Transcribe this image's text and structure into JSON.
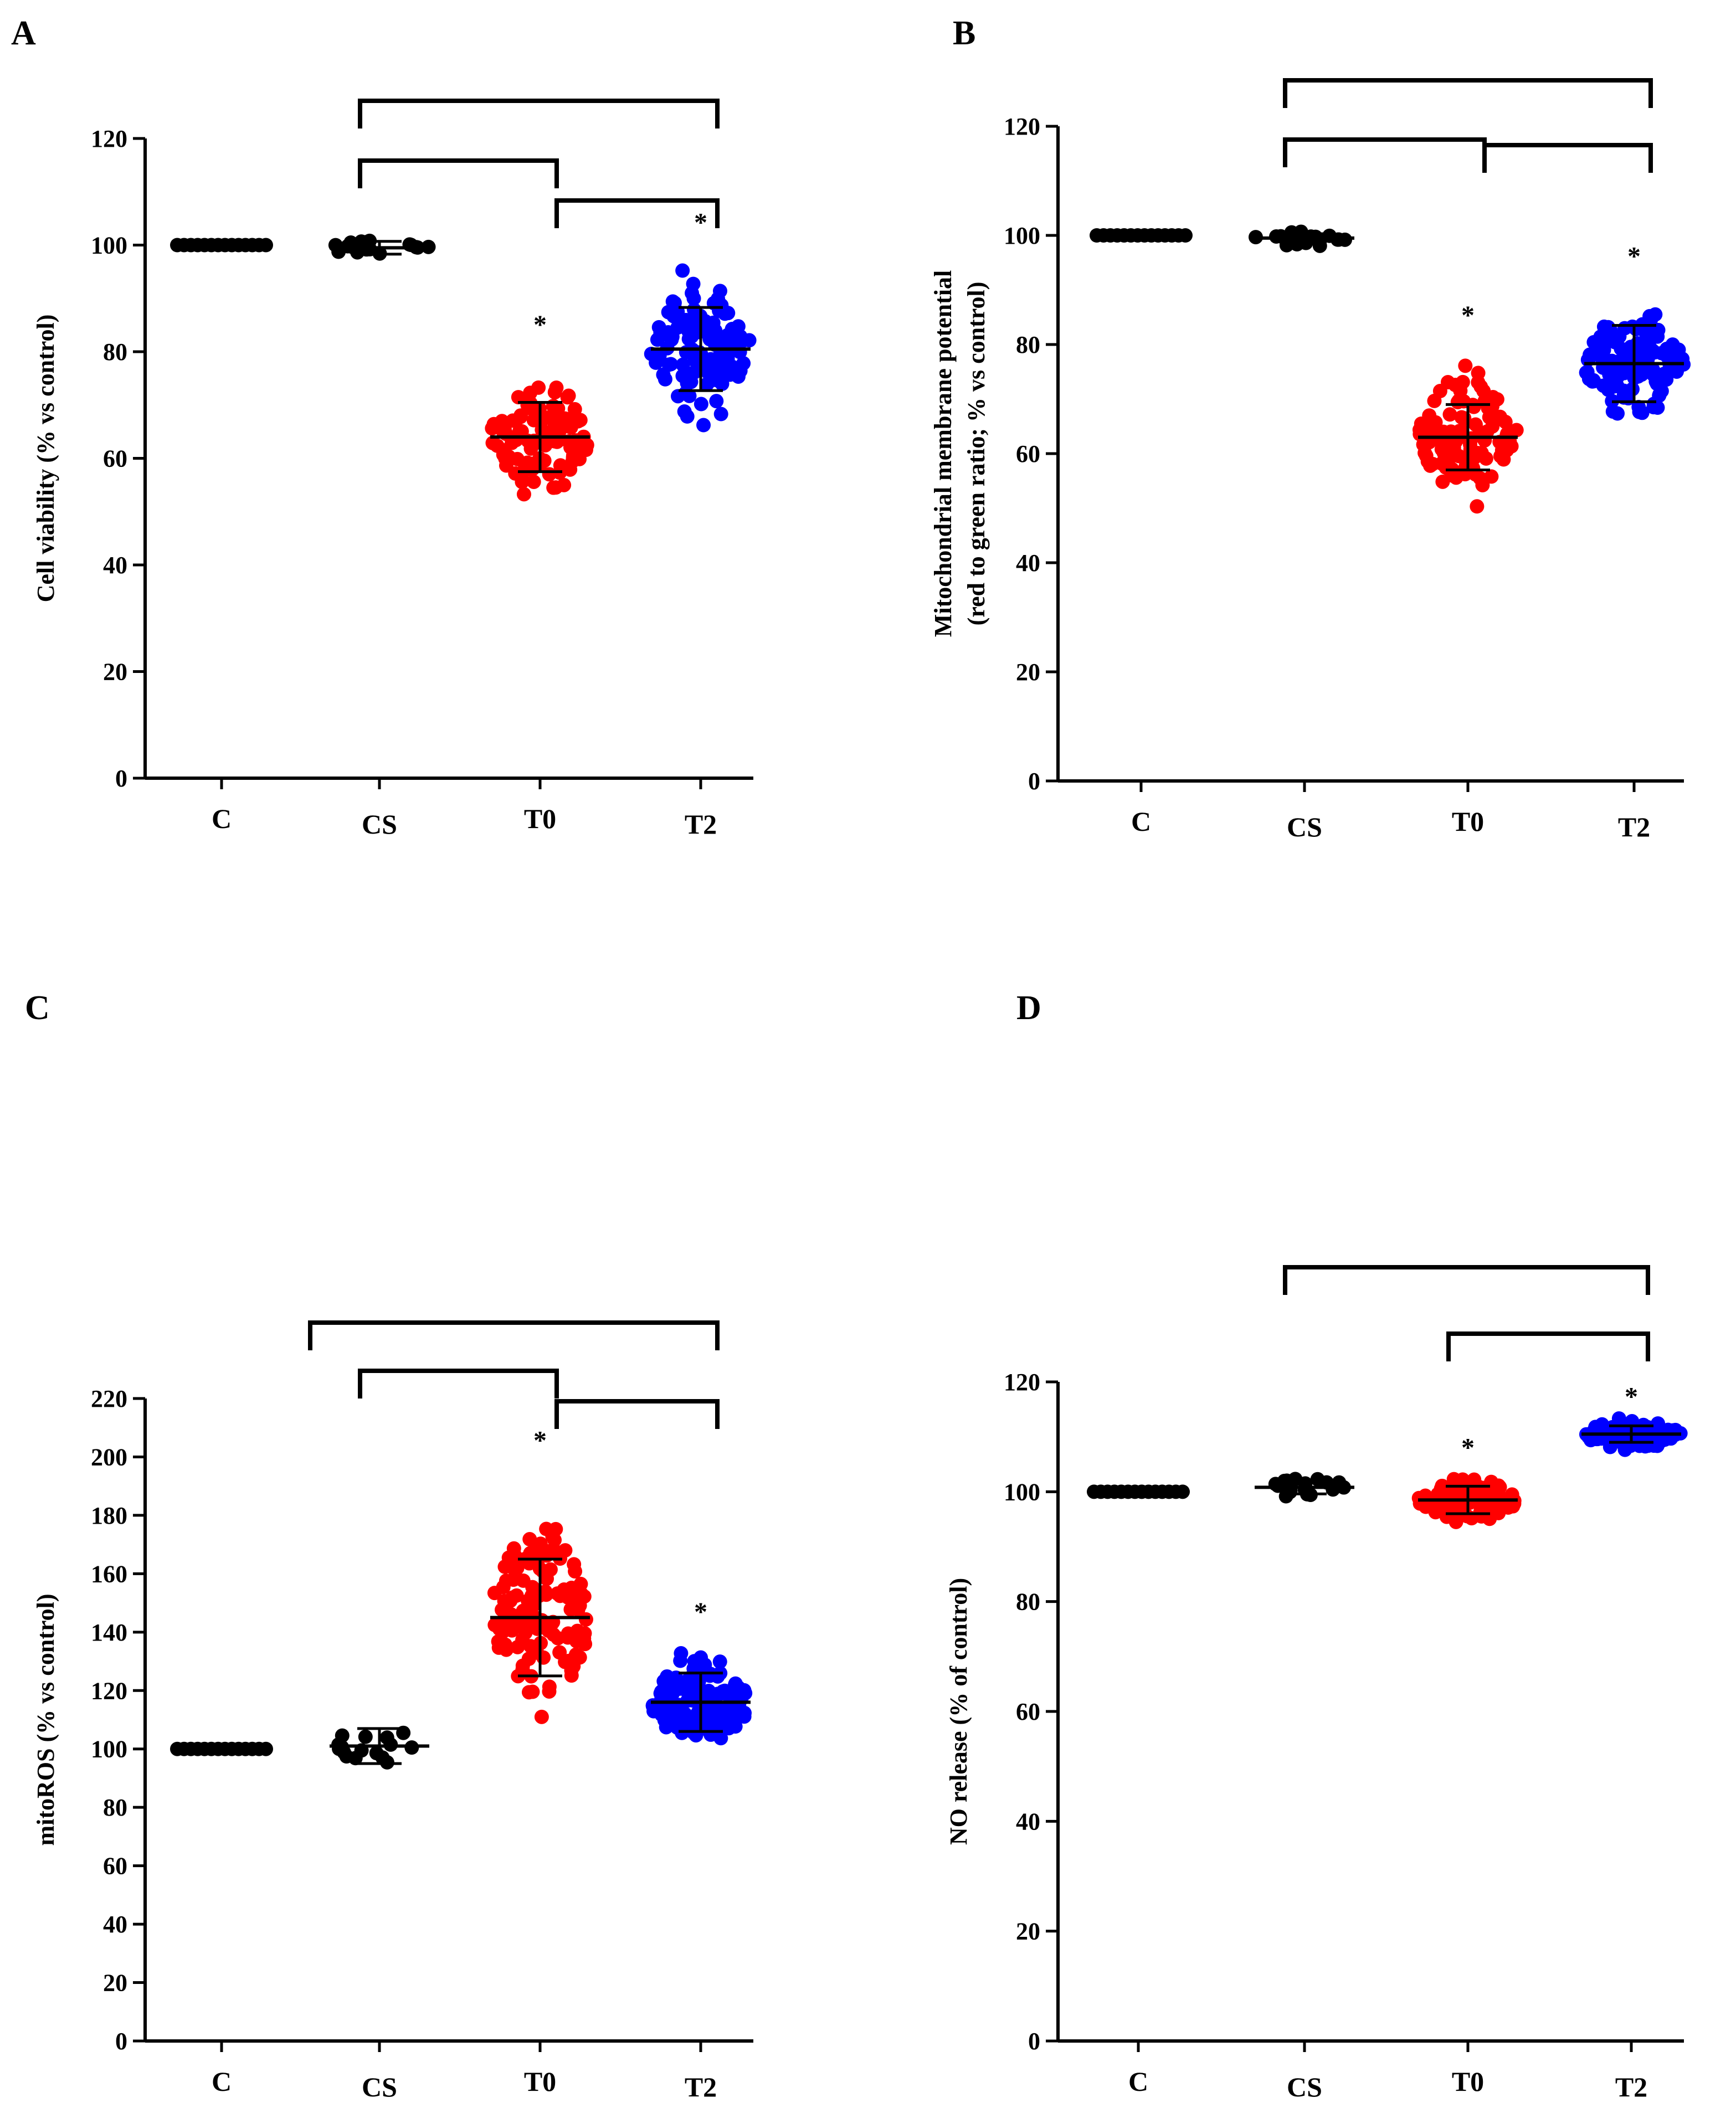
{
  "colors": {
    "C": "#000000",
    "CS": "#000000",
    "T0": "#ff0000",
    "T2": "#0000ff",
    "axis": "#000000"
  },
  "chart_data": [
    {
      "panel": "A",
      "type": "scatter",
      "ylabel": "Cell viability (% vs control)",
      "ylabel2": "",
      "ylim": [
        0,
        120
      ],
      "yticks": [
        0,
        20,
        40,
        60,
        80,
        100,
        120
      ],
      "categories": [
        "C",
        "CS",
        "T0",
        "T2"
      ],
      "groups": [
        {
          "name": "C",
          "mean": 100,
          "sd": 0,
          "spread": 0,
          "n": 14,
          "star": false
        },
        {
          "name": "CS",
          "mean": 99.5,
          "sd": 1.2,
          "spread": 2.5,
          "n": 18,
          "star": false
        },
        {
          "name": "T0",
          "mean": 64,
          "sd": 6.5,
          "spread": 14,
          "n": 110,
          "star": true
        },
        {
          "name": "T2",
          "mean": 80.5,
          "sd": 7.8,
          "spread": 16,
          "n": 120,
          "star": true
        }
      ],
      "brackets": [
        [
          "CS",
          "T2"
        ],
        [
          "CS",
          "T0"
        ],
        [
          "T0",
          "T2"
        ]
      ]
    },
    {
      "panel": "B",
      "type": "scatter",
      "ylabel": "Mitochondrial membrane potential",
      "ylabel2": "(red to green ratio; % vs control)",
      "ylim": [
        0,
        120
      ],
      "yticks": [
        0,
        20,
        40,
        60,
        80,
        100,
        120
      ],
      "categories": [
        "C",
        "CS",
        "T0",
        "T2"
      ],
      "groups": [
        {
          "name": "C",
          "mean": 100,
          "sd": 0,
          "spread": 0,
          "n": 14,
          "star": false
        },
        {
          "name": "CS",
          "mean": 99.5,
          "sd": 0.8,
          "spread": 2,
          "n": 18,
          "star": false
        },
        {
          "name": "T0",
          "mean": 63,
          "sd": 6,
          "spread": 15,
          "n": 110,
          "star": true
        },
        {
          "name": "T2",
          "mean": 76.5,
          "sd": 7,
          "spread": 13,
          "n": 120,
          "star": true
        }
      ],
      "brackets": [
        [
          "CS",
          "T2"
        ],
        [
          "CS",
          "T0"
        ],
        [
          "T0",
          "T2"
        ]
      ]
    },
    {
      "panel": "C",
      "type": "scatter",
      "ylabel": "mitoROS (% vs control)",
      "ylabel2": "",
      "ylim": [
        0,
        220
      ],
      "yticks": [
        0,
        20,
        40,
        60,
        80,
        100,
        120,
        140,
        160,
        180,
        200,
        220
      ],
      "categories": [
        "C",
        "CS",
        "T0",
        "T2"
      ],
      "groups": [
        {
          "name": "C",
          "mean": 100,
          "sd": 0,
          "spread": 0,
          "n": 14,
          "star": false
        },
        {
          "name": "CS",
          "mean": 101,
          "sd": 6,
          "spread": 11,
          "n": 16,
          "star": false
        },
        {
          "name": "T0",
          "mean": 145,
          "sd": 20,
          "spread": 42,
          "n": 130,
          "star": true
        },
        {
          "name": "T2",
          "mean": 116,
          "sd": 10,
          "spread": 20,
          "n": 130,
          "star": true
        }
      ],
      "brackets": [
        [
          "C",
          "T2"
        ],
        [
          "CS",
          "T0"
        ],
        [
          "T0",
          "T2"
        ]
      ]
    },
    {
      "panel": "D",
      "type": "scatter",
      "ylabel": "NO release (% of control)",
      "ylabel2": "",
      "ylim": [
        0,
        120
      ],
      "yticks": [
        0,
        20,
        40,
        60,
        80,
        100,
        120
      ],
      "categories": [
        "C",
        "CS",
        "T0",
        "T2"
      ],
      "groups": [
        {
          "name": "C",
          "mean": 100,
          "sd": 0,
          "spread": 0,
          "n": 14,
          "star": false
        },
        {
          "name": "CS",
          "mean": 100.8,
          "sd": 1.2,
          "spread": 2.5,
          "n": 18,
          "star": false
        },
        {
          "name": "T0",
          "mean": 98.5,
          "sd": 2.5,
          "spread": 5.5,
          "n": 90,
          "star": true
        },
        {
          "name": "T2",
          "mean": 110.5,
          "sd": 1.5,
          "spread": 3.5,
          "n": 100,
          "star": true
        }
      ],
      "brackets": [
        [
          "CS",
          "T2"
        ],
        [
          "T0",
          "T2"
        ]
      ]
    }
  ]
}
